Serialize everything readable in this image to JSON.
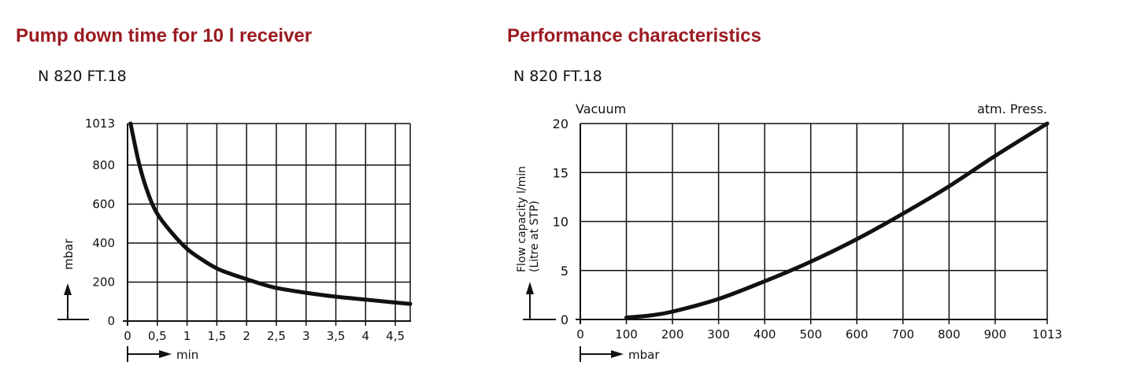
{
  "chart_data": [
    {
      "type": "line",
      "title": "Pump down time for 10 l receiver",
      "subtitle": "N 820 FT.18",
      "xlabel": "min",
      "ylabel": "mbar",
      "x_ticks": [
        "0",
        "0,5",
        "1",
        "1,5",
        "2",
        "2,5",
        "3",
        "3,5",
        "4",
        "4,5"
      ],
      "y_ticks": [
        "0",
        "200",
        "400",
        "600",
        "800",
        "1013"
      ],
      "xlim": [
        0,
        4.75
      ],
      "ylim": [
        0,
        1013
      ],
      "grid": true,
      "x": [
        0.05,
        0.2,
        0.35,
        0.5,
        0.75,
        1.0,
        1.25,
        1.5,
        1.75,
        2.0,
        2.25,
        2.5,
        3.0,
        3.5,
        4.0,
        4.5,
        4.75
      ],
      "y": [
        1013,
        800,
        650,
        550,
        450,
        370,
        315,
        270,
        240,
        215,
        190,
        170,
        145,
        125,
        110,
        95,
        88
      ]
    },
    {
      "type": "line",
      "title": "Performance characteristics",
      "subtitle": "N 820 FT.18",
      "xlabel": "mbar",
      "ylabel": "Flow capacity l/min (Litre at STP)",
      "annotations": [
        "Vacuum",
        "atm. Press."
      ],
      "x_ticks": [
        "0",
        "100",
        "200",
        "300",
        "400",
        "500",
        "600",
        "700",
        "800",
        "900",
        "1013"
      ],
      "y_ticks": [
        "0",
        "5",
        "10",
        "15",
        "20"
      ],
      "xlim": [
        0,
        1013
      ],
      "ylim": [
        0,
        20
      ],
      "grid": true,
      "x": [
        100,
        150,
        200,
        300,
        400,
        500,
        600,
        700,
        800,
        900,
        1013
      ],
      "y": [
        0.2,
        0.4,
        0.8,
        2.1,
        3.9,
        5.9,
        8.2,
        10.8,
        13.6,
        16.7,
        20
      ]
    }
  ]
}
